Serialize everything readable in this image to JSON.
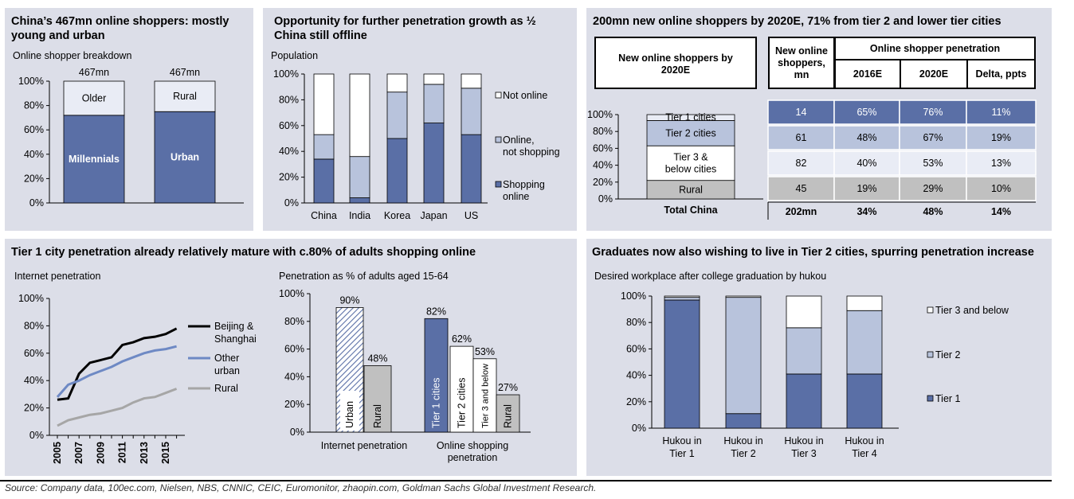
{
  "source": "Source: Company data, 100ec.com, Nielsen, NBS, CNNIC, CEIC, Euromonitor, zhaopin.com, Goldman Sachs Global Investment Research.",
  "colors": {
    "blue": "#5a6fa6",
    "lightblue": "#b8c3dc",
    "paleblue": "#e9ecf5",
    "grey": "#c0c0c0",
    "white": "#ffffff",
    "line_black": "#000000",
    "line_blue": "#6e89c4",
    "line_grey": "#a6a6a6",
    "panel_bg": "#dcdee8"
  },
  "p1": {
    "title": "China’s 467mn online shoppers: mostly young and urban",
    "subtitle": "Online shopper breakdown",
    "chart_data": {
      "type": "bar",
      "categories": [
        "",
        ""
      ],
      "series": [
        {
          "name": "",
          "values": [
            72,
            75
          ]
        },
        {
          "name": "",
          "values": [
            28,
            25
          ]
        }
      ],
      "bar_labels": [
        [
          "Millennials",
          "Older"
        ],
        [
          "Urban",
          "Rural"
        ]
      ],
      "totals": [
        "467mn",
        "467mn"
      ],
      "yticks": [
        "0%",
        "20%",
        "40%",
        "60%",
        "80%",
        "100%"
      ],
      "ylim": [
        0,
        100
      ]
    }
  },
  "p2": {
    "title": "Opportunity for further penetration growth as ½ China still offline",
    "subtitle": "Population",
    "chart_data": {
      "type": "bar",
      "categories": [
        "China",
        "India",
        "Korea",
        "Japan",
        "US"
      ],
      "series": [
        {
          "name": "Shopping online",
          "values": [
            34,
            4,
            50,
            62,
            53
          ]
        },
        {
          "name": "Online, not shopping",
          "values": [
            19,
            32,
            36,
            30,
            36
          ]
        },
        {
          "name": "Not online",
          "values": [
            47,
            64,
            14,
            8,
            11
          ]
        }
      ],
      "legend": [
        "Not online",
        "Online, not shopping",
        "Shopping online"
      ],
      "yticks": [
        "0%",
        "20%",
        "40%",
        "60%",
        "80%",
        "100%"
      ],
      "ylim": [
        0,
        100
      ]
    }
  },
  "p3": {
    "title": "200mn new online shoppers by 2020E, 71% from tier 2 and lower tier cities",
    "box_left": "New online shoppers by 2020E",
    "box_mid": "New online shoppers, mn",
    "box_right": "Online shopper penetration",
    "headers": [
      "2016E",
      "2020E",
      "Delta, ppts"
    ],
    "chart_data": {
      "type": "bar",
      "categories": [
        "Total China"
      ],
      "series": [
        {
          "name": "Rural",
          "values": [
            22
          ]
        },
        {
          "name": "Tier 3 & below cities",
          "values": [
            41
          ]
        },
        {
          "name": "Tier 2 cities",
          "values": [
            30
          ]
        },
        {
          "name": "Tier 1 cities",
          "values": [
            7
          ]
        }
      ],
      "yticks": [
        "0%",
        "20%",
        "40%",
        "60%",
        "80%",
        "100%"
      ],
      "ylim": [
        0,
        100
      ]
    },
    "rows": [
      {
        "mn": "14",
        "y2016": "65%",
        "y2020": "76%",
        "delta": "11%"
      },
      {
        "mn": "61",
        "y2016": "48%",
        "y2020": "67%",
        "delta": "19%"
      },
      {
        "mn": "82",
        "y2016": "40%",
        "y2020": "53%",
        "delta": "13%"
      },
      {
        "mn": "45",
        "y2016": "19%",
        "y2020": "29%",
        "delta": "10%"
      }
    ],
    "total": {
      "label": "Total China",
      "mn": "202mn",
      "y2016": "34%",
      "y2020": "48%",
      "delta": "14%"
    }
  },
  "p4": {
    "title": "Tier 1 city penetration already relatively mature with c.80% of adults shopping online",
    "subtitle_left": "Internet penetration",
    "subtitle_right": "Penetration as % of adults aged 15-64",
    "line_chart": {
      "type": "line",
      "x": [
        2005,
        2006,
        2007,
        2008,
        2009,
        2010,
        2011,
        2012,
        2013,
        2014,
        2015,
        2016
      ],
      "series": [
        {
          "name": "Beijing & Shanghai",
          "values": [
            26,
            27,
            45,
            53,
            55,
            57,
            66,
            68,
            71,
            72,
            74,
            78
          ]
        },
        {
          "name": "Other urban",
          "values": [
            28,
            37,
            40,
            44,
            47,
            50,
            54,
            57,
            60,
            62,
            63,
            65
          ]
        },
        {
          "name": "Rural",
          "values": [
            7,
            11,
            13,
            15,
            16,
            18,
            20,
            24,
            27,
            28,
            31,
            34
          ]
        }
      ],
      "xticks": [
        "2005",
        "2007",
        "2009",
        "2011",
        "2013",
        "2015"
      ],
      "yticks": [
        "0%",
        "20%",
        "40%",
        "60%",
        "80%",
        "100%"
      ],
      "ylim": [
        0,
        100
      ]
    },
    "bar_chart": {
      "type": "bar",
      "groups": [
        {
          "name": "Internet penetration",
          "bars": [
            {
              "label": "Urban",
              "value": 90,
              "text": "90%"
            },
            {
              "label": "Rural",
              "value": 48,
              "text": "48%"
            }
          ]
        },
        {
          "name": "Online shopping penetration",
          "bars": [
            {
              "label": "Tier 1 cities",
              "value": 82,
              "text": "82%"
            },
            {
              "label": "Tier 2 cities",
              "value": 62,
              "text": "62%"
            },
            {
              "label": "Tier 3 and below",
              "value": 53,
              "text": "53%"
            },
            {
              "label": "Rural",
              "value": 27,
              "text": "27%"
            }
          ]
        }
      ],
      "yticks": [
        "0%",
        "20%",
        "40%",
        "60%",
        "80%",
        "100%"
      ],
      "ylim": [
        0,
        100
      ]
    }
  },
  "p5": {
    "title": "Graduates now also wishing to live in Tier 2 cities, spurring penetration increase",
    "subtitle": "Desired workplace after college graduation by hukou",
    "chart_data": {
      "type": "bar",
      "categories": [
        [
          "Hukou in",
          "Tier 1"
        ],
        [
          "Hukou in",
          "Tier 2"
        ],
        [
          "Hukou in",
          "Tier 3"
        ],
        [
          "Hukou in",
          "Tier 4"
        ]
      ],
      "series": [
        {
          "name": "Tier 1",
          "values": [
            97,
            11,
            41,
            41
          ]
        },
        {
          "name": "Tier 2",
          "values": [
            2,
            88,
            35,
            48
          ]
        },
        {
          "name": "Tier 3 and below",
          "values": [
            1,
            1,
            24,
            11
          ]
        }
      ],
      "legend": [
        "Tier 3 and below",
        "Tier 2",
        "Tier 1"
      ],
      "yticks": [
        "0%",
        "20%",
        "40%",
        "60%",
        "80%",
        "100%"
      ],
      "ylim": [
        0,
        100
      ]
    }
  }
}
